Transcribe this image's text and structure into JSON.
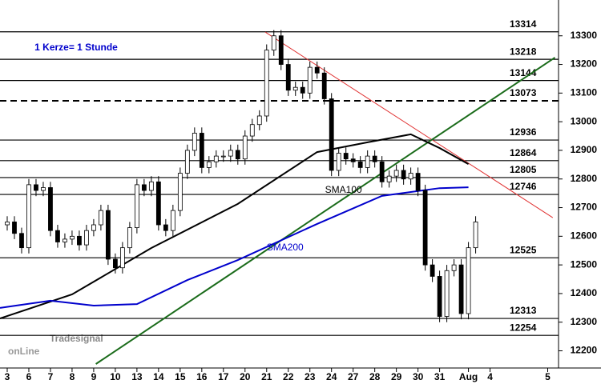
{
  "chart_data": {
    "type": "candlestick",
    "annotation": "1 Kerze= 1 Stunde",
    "logo": {
      "small": "Tradesignal",
      "big": "onLine"
    },
    "xlim": [
      -1,
      76.5
    ],
    "xticks": [
      {
        "value": 0,
        "label": "3"
      },
      {
        "value": 3,
        "label": "6"
      },
      {
        "value": 6,
        "label": "7"
      },
      {
        "value": 9,
        "label": "8"
      },
      {
        "value": 12,
        "label": "9"
      },
      {
        "value": 15,
        "label": "10"
      },
      {
        "value": 18,
        "label": "13"
      },
      {
        "value": 21,
        "label": "14"
      },
      {
        "value": 24,
        "label": "15"
      },
      {
        "value": 27,
        "label": "16"
      },
      {
        "value": 30,
        "label": "17"
      },
      {
        "value": 33,
        "label": "20"
      },
      {
        "value": 36,
        "label": "21"
      },
      {
        "value": 39,
        "label": "22"
      },
      {
        "value": 42,
        "label": "23"
      },
      {
        "value": 45,
        "label": "24"
      },
      {
        "value": 48,
        "label": "27"
      },
      {
        "value": 51,
        "label": "28"
      },
      {
        "value": 54,
        "label": "29"
      },
      {
        "value": 57,
        "label": "30"
      },
      {
        "value": 60,
        "label": "31"
      },
      {
        "value": 64,
        "label": "Aug"
      },
      {
        "value": 67,
        "label": "4"
      },
      {
        "value": 75,
        "label": "5"
      }
    ],
    "ylim": [
      12140,
      13425
    ],
    "yticks": [
      12200,
      12300,
      12400,
      12500,
      12600,
      12700,
      12800,
      12900,
      13000,
      13100,
      13200,
      13300
    ],
    "up_color": "#ffffff",
    "down_color": "#000000",
    "x": [
      0,
      1,
      2,
      3,
      4,
      5,
      6,
      7,
      8,
      9,
      10,
      11,
      12,
      13,
      14,
      15,
      16,
      17,
      18,
      19,
      20,
      21,
      22,
      23,
      24,
      25,
      26,
      27,
      28,
      29,
      30,
      31,
      32,
      33,
      34,
      35,
      36,
      37,
      38,
      39,
      40,
      41,
      42,
      43,
      44,
      45,
      46,
      47,
      48,
      49,
      50,
      51,
      52,
      53,
      54,
      55,
      56,
      57,
      58,
      59,
      60,
      61,
      62,
      63,
      64,
      65
    ],
    "open": [
      12640,
      12650,
      12610,
      12560,
      12780,
      12760,
      12770,
      12620,
      12580,
      12590,
      12600,
      12570,
      12620,
      12640,
      12690,
      12520,
      12490,
      12560,
      12630,
      12780,
      12760,
      12790,
      12640,
      12620,
      12690,
      12820,
      12900,
      12960,
      12840,
      12860,
      12880,
      12880,
      12900,
      12870,
      12950,
      12990,
      13020,
      13250,
      13300,
      13200,
      13110,
      13120,
      13100,
      13190,
      13170,
      13080,
      12830,
      12890,
      12870,
      12860,
      12840,
      12880,
      12860,
      12790,
      12810,
      12830,
      12800,
      12820,
      12760,
      12500,
      12460,
      12320,
      12480,
      12500,
      12330,
      12560
    ],
    "high": [
      12670,
      12670,
      12630,
      12800,
      12800,
      12790,
      12790,
      12640,
      12610,
      12620,
      12620,
      12640,
      12660,
      12710,
      12710,
      12540,
      12580,
      12650,
      12800,
      12800,
      12810,
      12810,
      12660,
      12710,
      12840,
      12920,
      12980,
      12980,
      12880,
      12900,
      12900,
      12920,
      12920,
      12970,
      13010,
      13040,
      13270,
      13320,
      13320,
      13220,
      13140,
      13140,
      13210,
      13210,
      13190,
      13100,
      12910,
      12910,
      12890,
      12880,
      12900,
      12900,
      12880,
      12830,
      12850,
      12850,
      12840,
      12840,
      12780,
      12520,
      12480,
      12500,
      12520,
      12520,
      12580,
      12670
    ],
    "low": [
      12620,
      12590,
      12540,
      12540,
      12740,
      12740,
      12600,
      12560,
      12560,
      12570,
      12550,
      12550,
      12600,
      12620,
      12500,
      12470,
      12470,
      12540,
      12610,
      12740,
      12740,
      12620,
      12600,
      12600,
      12670,
      12800,
      12880,
      12820,
      12820,
      12840,
      12860,
      12860,
      12850,
      12850,
      12930,
      12970,
      13000,
      13230,
      13180,
      13090,
      13090,
      13080,
      13080,
      13150,
      13060,
      12810,
      12810,
      12850,
      12840,
      12820,
      12820,
      12840,
      12770,
      12770,
      12790,
      12780,
      12780,
      12740,
      12480,
      12440,
      12300,
      12300,
      12460,
      12310,
      12310,
      12540
    ],
    "close": [
      12650,
      12610,
      12560,
      12780,
      12760,
      12770,
      12620,
      12580,
      12590,
      12600,
      12570,
      12620,
      12640,
      12690,
      12520,
      12490,
      12560,
      12630,
      12780,
      12760,
      12790,
      12640,
      12620,
      12690,
      12820,
      12900,
      12960,
      12840,
      12860,
      12880,
      12880,
      12900,
      12870,
      12950,
      12990,
      13020,
      13250,
      13300,
      13200,
      13110,
      13120,
      13100,
      13190,
      13170,
      13080,
      12830,
      12890,
      12870,
      12860,
      12840,
      12880,
      12860,
      12790,
      12810,
      12830,
      12800,
      12820,
      12760,
      12500,
      12460,
      12320,
      12480,
      12500,
      12330,
      12560,
      12650
    ],
    "averages": [
      {
        "name": "SMA100",
        "color": "#000000",
        "x": [
          -1,
          9,
          20,
          32,
          43,
          50,
          56,
          60,
          64
        ],
        "values": [
          12313,
          12397,
          12559,
          12713,
          12894,
          12928,
          12956,
          12908,
          12852
        ]
      },
      {
        "name": "SMA200",
        "color": "#0000cc",
        "x": [
          -1,
          6,
          12,
          18,
          25,
          32,
          43,
          52,
          60,
          64
        ],
        "values": [
          12350,
          12375,
          12358,
          12363,
          12447,
          12517,
          12643,
          12741,
          12768,
          12771
        ]
      }
    ],
    "trendlines": [
      {
        "color": "#e03030",
        "x": [
          35.8,
          75.7
        ],
        "values": [
          13313,
          12665
        ]
      },
      {
        "color": "#1a6b1a",
        "x": [
          12.3,
          76
        ],
        "values": [
          12154,
          13224
        ]
      }
    ],
    "levels": [
      {
        "value": 13314,
        "dashed": false
      },
      {
        "value": 13218,
        "dashed": false
      },
      {
        "value": 13144,
        "dashed": false
      },
      {
        "value": 13073,
        "dashed": true
      },
      {
        "value": 12936,
        "dashed": false
      },
      {
        "value": 12864,
        "dashed": false
      },
      {
        "value": 12805,
        "dashed": false
      },
      {
        "value": 12746,
        "dashed": false
      },
      {
        "value": 12525,
        "dashed": false
      },
      {
        "value": 12313,
        "dashed": false
      },
      {
        "value": 12254,
        "dashed": false
      }
    ]
  }
}
